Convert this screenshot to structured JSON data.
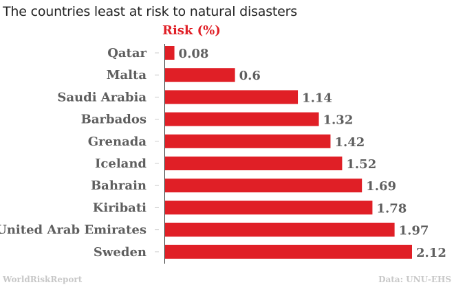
{
  "chart_data": {
    "type": "bar",
    "orientation": "horizontal",
    "title": "The countries least at risk to natural disasters",
    "series_name": "Risk (%)",
    "categories": [
      "Qatar",
      "Malta",
      "Saudi Arabia",
      "Barbados",
      "Grenada",
      "Iceland",
      "Bahrain",
      "Kiribati",
      "United Arab Emirates",
      "Sweden"
    ],
    "values": [
      0.08,
      0.6,
      1.14,
      1.32,
      1.42,
      1.52,
      1.69,
      1.78,
      1.97,
      2.12
    ],
    "value_labels": [
      "0.08",
      "0.6",
      "1.14",
      "1.32",
      "1.42",
      "1.52",
      "1.69",
      "1.78",
      "1.97",
      "2.12"
    ],
    "xlim": [
      0,
      2.12
    ],
    "grid": false,
    "bar_color": "#e01f26",
    "label_color": "#5f5f5f"
  },
  "footer": {
    "source_left": "WorldRiskReport",
    "source_right": "Data: UNU-EHS"
  }
}
